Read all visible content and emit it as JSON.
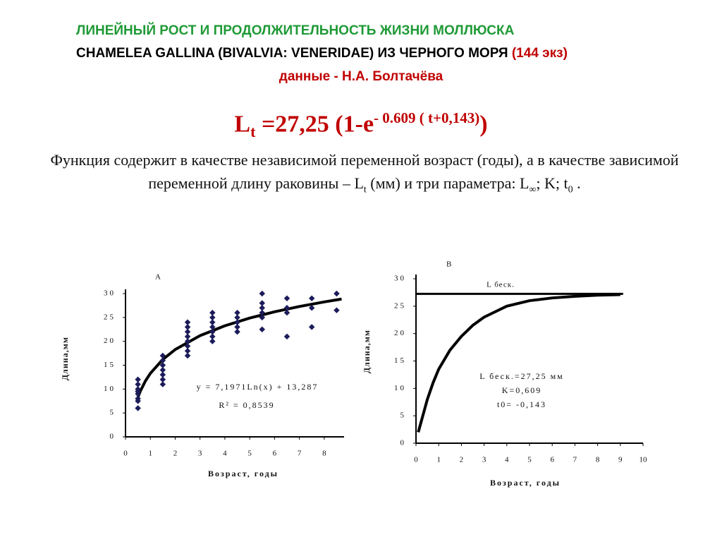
{
  "header": {
    "line1": "ЛИНЕЙНЫЙ РОСТ И ПРОДОЛЖИТЕЛЬНОСТЬ ЖИЗНИ МОЛЛЮСКА",
    "line2": "CHAMELEA GALLINA (BIVALVIA: VENERIDAE) ИЗ ЧЕРНОГО МОРЯ",
    "count": "(144 экз)",
    "author": "данные - Н.А. Болтачёва"
  },
  "formula": [
    "L",
    "t",
    " =27,25 (1-e",
    "- 0.609 ( t+0,143)",
    ")"
  ],
  "description": [
    "Функция содержит в качестве независимой переменной возраст  (годы), а в качестве зависимой переменной длину раковины – L",
    "t",
    " (мм)  и три параметра: L",
    "∞",
    "; K; t",
    "0",
    " ."
  ],
  "chart_data": [
    {
      "type": "scatter",
      "title": "А",
      "xlabel": "Возраст, годы",
      "ylabel": "Длина,мм",
      "xlim": [
        0,
        8.8
      ],
      "ylim": [
        0,
        30
      ],
      "xticks": [
        0,
        1,
        2,
        3,
        4,
        5,
        6,
        7,
        8
      ],
      "yticks": [
        0,
        5,
        10,
        15,
        20,
        25,
        30
      ],
      "series": [
        {
          "color": "#1c1c5a",
          "x": [
            0.5,
            0.5,
            0.5,
            0.5,
            0.5,
            0.5,
            0.5,
            0.5,
            1.5,
            1.5,
            1.5,
            1.5,
            1.5,
            1.5,
            1.5,
            2.5,
            2.5,
            2.5,
            2.5,
            2.5,
            2.5,
            2.5,
            2.5,
            3.5,
            3.5,
            3.5,
            3.5,
            3.5,
            3.5,
            3.5,
            4.5,
            4.5,
            4.5,
            4.5,
            4.5,
            5.5,
            5.5,
            5.5,
            5.5,
            5.5,
            5.5,
            6.5,
            6.5,
            6.5,
            6.5,
            7.5,
            7.5,
            7.5,
            8.5,
            8.5
          ],
          "y": [
            6,
            7.5,
            8,
            9,
            9.5,
            10,
            11,
            12,
            11,
            12,
            13,
            14,
            15,
            16,
            17,
            17,
            18,
            19,
            20,
            21,
            22,
            23,
            24,
            20,
            21,
            22,
            23,
            24,
            25,
            26,
            22,
            23,
            24,
            25,
            26,
            22.5,
            25,
            26,
            27,
            28,
            30,
            21,
            26,
            27,
            29,
            23,
            27,
            29,
            26.5,
            30
          ]
        }
      ],
      "trend": {
        "color": "#000000",
        "x": [
          0.5,
          0.6,
          0.8,
          1,
          1.5,
          2,
          3,
          4,
          5,
          6,
          7,
          8,
          8.7
        ],
        "y": [
          8.3,
          9.61,
          11.68,
          13.29,
          16.2,
          18.28,
          21.19,
          23.26,
          24.87,
          26.18,
          27.29,
          28.25,
          28.85
        ]
      },
      "annotations": [
        "y = 7,1971Ln(x) + 13,287",
        "R² = 0,8539"
      ]
    },
    {
      "type": "line",
      "title": "В",
      "xlabel": "Возраст, годы",
      "ylabel": "Длина,мм",
      "xlim": [
        0,
        10
      ],
      "ylim": [
        0,
        30
      ],
      "xticks": [
        0,
        1,
        2,
        3,
        4,
        5,
        6,
        7,
        8,
        9,
        10
      ],
      "yticks": [
        0,
        5,
        10,
        15,
        20,
        25,
        30
      ],
      "series": [
        {
          "color": "#000000",
          "x": [
            0.1,
            0.3,
            0.5,
            0.75,
            1,
            1.5,
            2,
            2.5,
            3,
            4,
            5,
            6,
            7,
            8,
            9
          ],
          "values": [
            2,
            5,
            8,
            11,
            13.5,
            17,
            19.5,
            21.5,
            23,
            25,
            26,
            26.5,
            26.8,
            27,
            27.1
          ]
        }
      ],
      "asymptote": 27.25,
      "asymptote_label": "L беск.",
      "annotations": [
        "L беск.=27,25 мм",
        "K=0,609",
        "t0= -0,143"
      ]
    }
  ]
}
